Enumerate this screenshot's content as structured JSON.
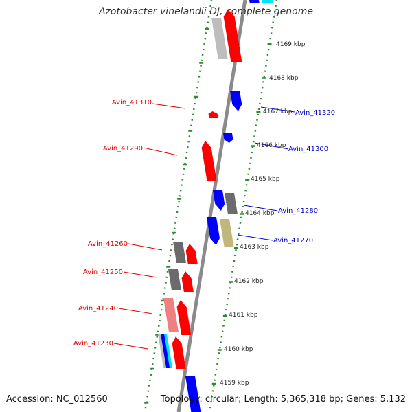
{
  "title": "Azotobacter vinelandii DJ, complete genome",
  "footer": {
    "accession": "Accession: NC_012560",
    "summary": "Topology: circular; Length: 5,365,318 bp; Genes: 5,132"
  },
  "colors": {
    "backbone": "#8a8a8a",
    "ruler_dots": "#2e8b2e",
    "forward_label": "#dd0000",
    "reverse_label": "#0000cc",
    "gene_red": "#ff0000",
    "gene_light_red": "#f08080",
    "gene_blue": "#0000ff",
    "gene_cyan": "#00e5ff",
    "gene_gray": "#6b6b6b",
    "gene_light_gray": "#bdbdbd",
    "gene_khaki": "#c2b77a"
  },
  "scale_labels": [
    "4169 kbp",
    "4168 kbp",
    "4167 kbp",
    "4166 kbp",
    "4165 kbp",
    "4164 kbp",
    "4163 kbp",
    "4162 kbp",
    "4161 kbp",
    "4160 kbp",
    "4159 kbp"
  ],
  "gene_labels": [
    {
      "name": "Avin_41310",
      "strand": "forward"
    },
    {
      "name": "Avin_41290",
      "strand": "forward"
    },
    {
      "name": "Avin_41260",
      "strand": "forward"
    },
    {
      "name": "Avin_41250",
      "strand": "forward"
    },
    {
      "name": "Avin_41240",
      "strand": "forward"
    },
    {
      "name": "Avin_41230",
      "strand": "forward"
    },
    {
      "name": "Avin_41320",
      "strand": "reverse"
    },
    {
      "name": "Avin_41300",
      "strand": "reverse"
    },
    {
      "name": "Avin_41280",
      "strand": "reverse"
    },
    {
      "name": "Avin_41270",
      "strand": "reverse"
    }
  ]
}
